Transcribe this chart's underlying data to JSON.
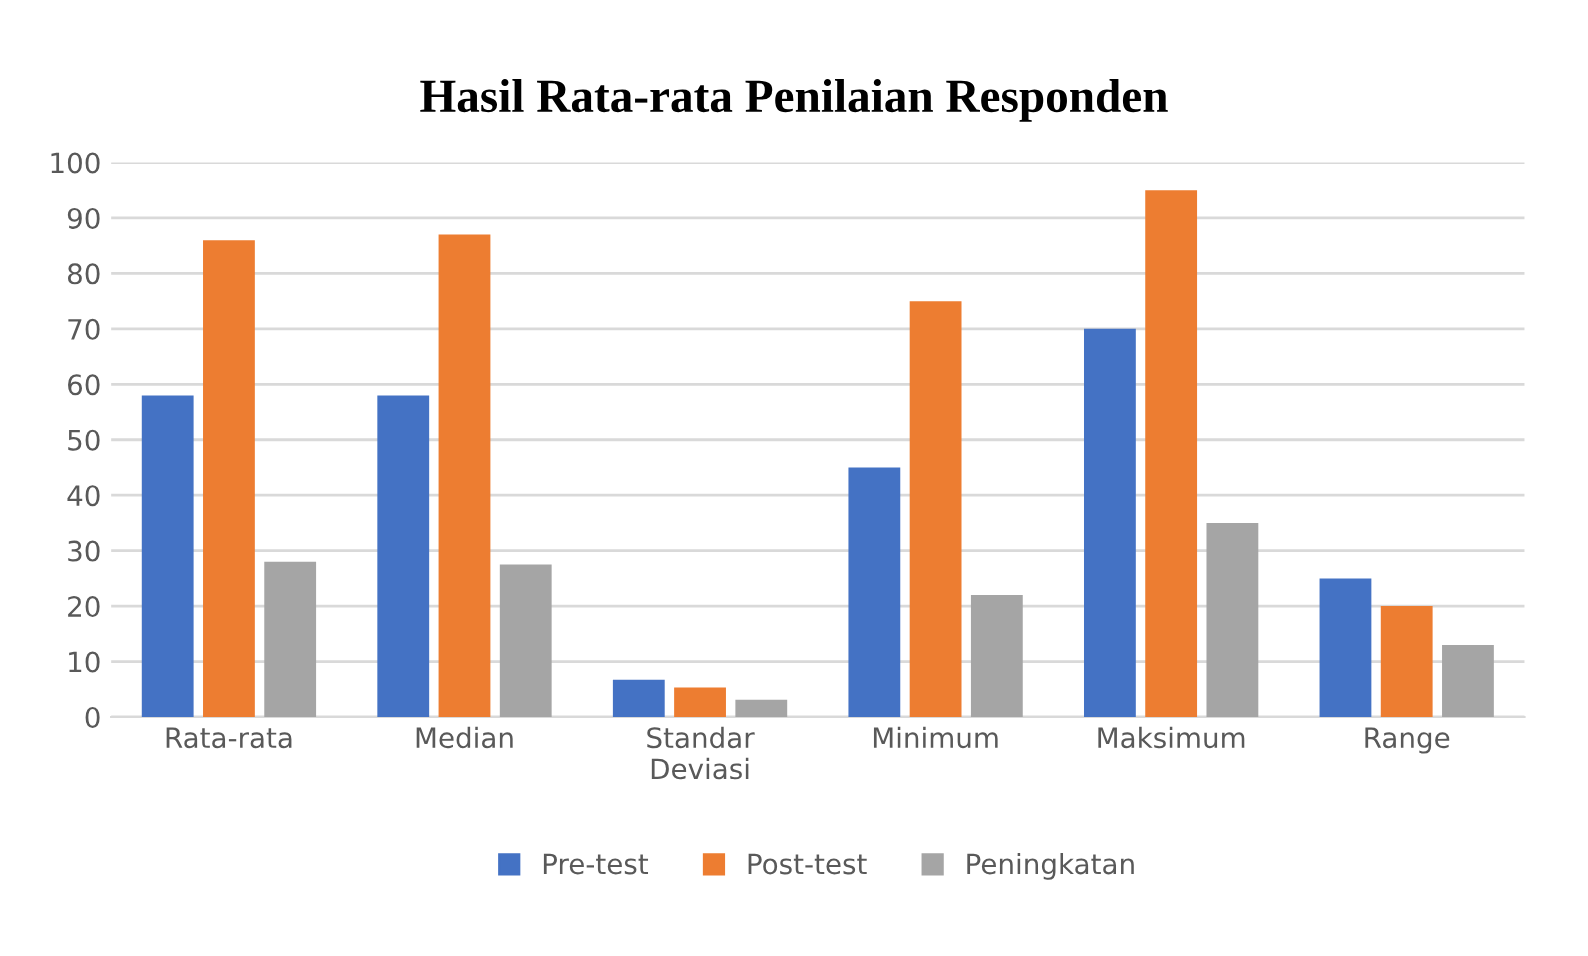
{
  "chart_data": {
    "type": "bar",
    "title": "Hasil Rata-rata Penilaian Responden",
    "categories": [
      "Rata-rata",
      "Median",
      "Standar\nDeviasi",
      "Minimum",
      "Maksimum",
      "Range"
    ],
    "series": [
      {
        "name": "Pre-test",
        "color": "#4472c4",
        "values": [
          58,
          58,
          6.7,
          45,
          70,
          25
        ]
      },
      {
        "name": "Post-test",
        "color": "#ed7d31",
        "values": [
          86,
          87,
          5.3,
          75,
          95,
          20
        ]
      },
      {
        "name": "Peningkatan",
        "color": "#a5a5a5",
        "values": [
          28,
          27.5,
          3.1,
          22,
          35,
          13
        ]
      }
    ],
    "ylim": [
      0,
      100
    ],
    "yticks": [
      0,
      10,
      20,
      30,
      40,
      50,
      60,
      70,
      80,
      90,
      100
    ],
    "grid": "y",
    "legend": "bottom"
  }
}
